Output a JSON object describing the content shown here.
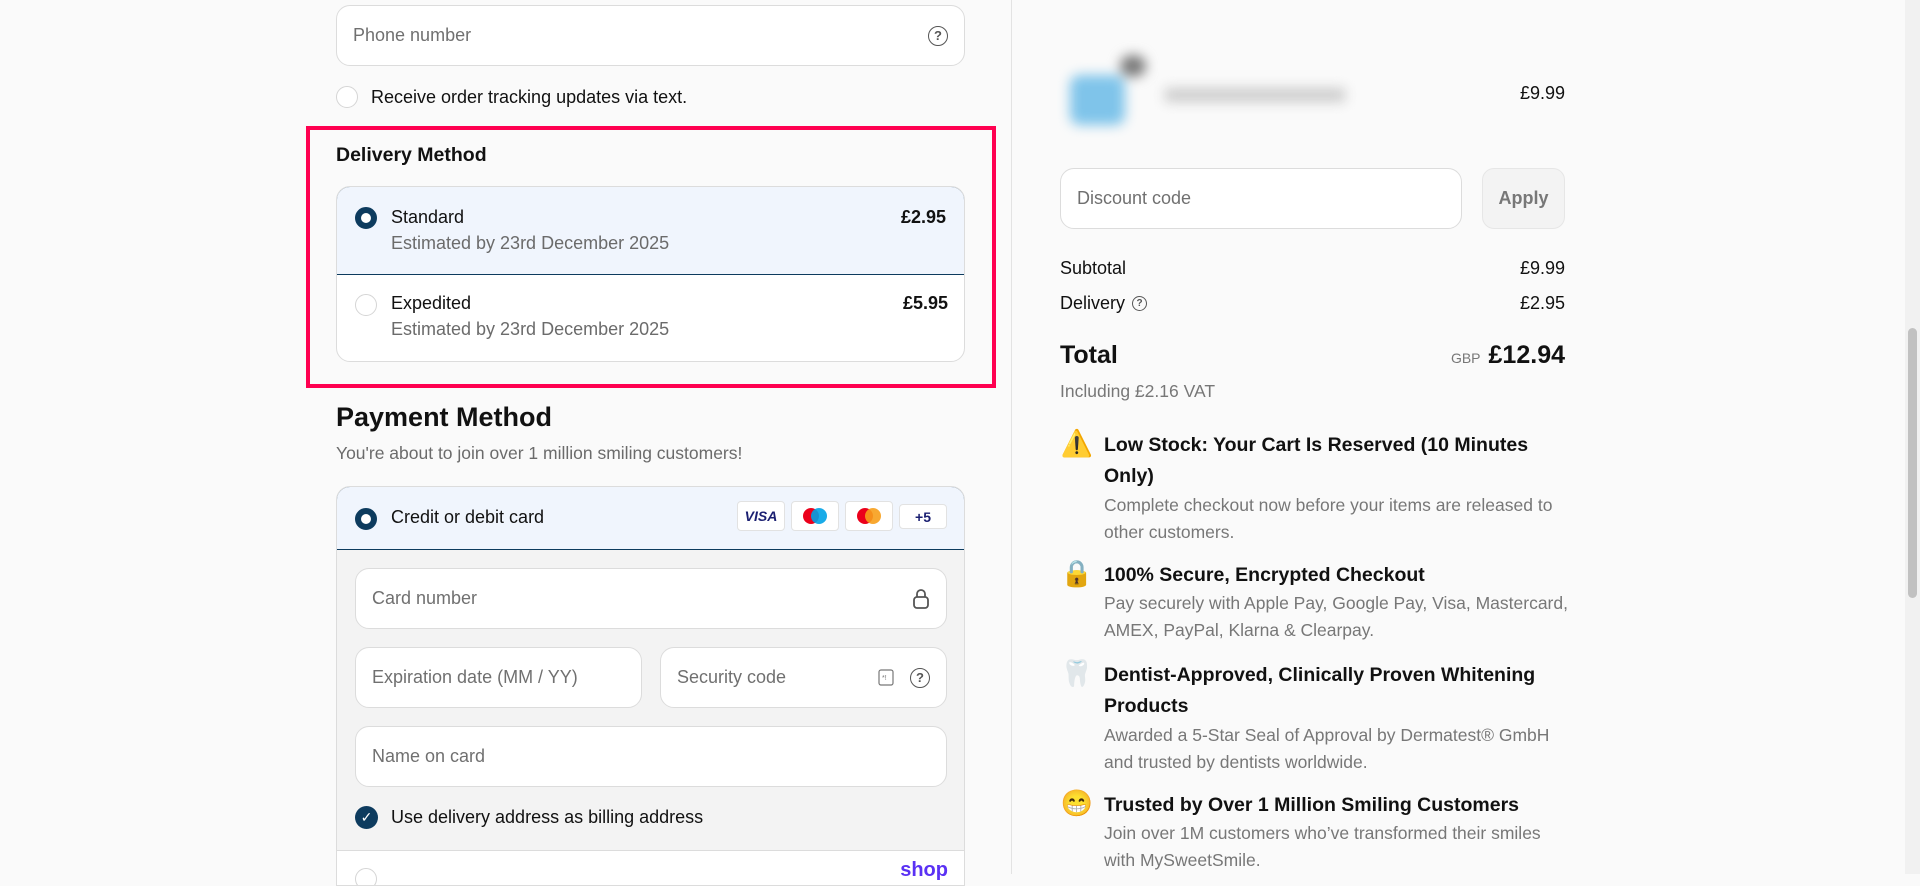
{
  "contact": {
    "phone_placeholder": "Phone number",
    "sms_label": "Receive order tracking updates via text.",
    "sms_checked": false
  },
  "delivery": {
    "heading": "Delivery Method",
    "options": [
      {
        "name": "Standard",
        "estimate": "Estimated by 23rd December 2025",
        "price": "£2.95",
        "selected": true
      },
      {
        "name": "Expedited",
        "estimate": "Estimated by 23rd December 2025",
        "price": "£5.95",
        "selected": false
      }
    ]
  },
  "payment": {
    "heading": "Payment Method",
    "subtitle": "You're about to join over 1 million smiling customers!",
    "card_option": {
      "label": "Credit or debit card",
      "selected": true,
      "brands": [
        "VISA",
        "maestro",
        "mastercard"
      ],
      "more_label": "+5"
    },
    "card_number_placeholder": "Card number",
    "expiry_placeholder": "Expiration date (MM / YY)",
    "security_placeholder": "Security code",
    "name_placeholder": "Name on card",
    "billing_same_label": "Use delivery address as billing address",
    "billing_same_checked": true,
    "next_option_logo": "shop"
  },
  "summary": {
    "item_price": "£9.99",
    "discount_placeholder": "Discount code",
    "apply_label": "Apply",
    "subtotal_label": "Subtotal",
    "subtotal_value": "£9.99",
    "delivery_label": "Delivery",
    "delivery_value": "£2.95",
    "total_label": "Total",
    "currency": "GBP",
    "total_value": "£12.94",
    "vat_note": "Including £2.16 VAT"
  },
  "features": [
    {
      "icon": "warning-icon",
      "title": "Low Stock: Your Cart Is Reserved (10 Minutes Only)",
      "desc": "Complete checkout now before your items are released to other customers."
    },
    {
      "icon": "lock-icon",
      "title": "100% Secure, Encrypted Checkout",
      "desc": "Pay securely with Apple Pay, Google Pay, Visa, Mastercard, AMEX, PayPal, Klarna & Clearpay."
    },
    {
      "icon": "tooth-icon",
      "title": "Dentist-Approved, Clinically Proven Whitening Products",
      "desc": "Awarded a 5-Star Seal of Approval by Dermatest® GmbH and trusted by dentists worldwide."
    },
    {
      "icon": "grin-icon",
      "title": "Trusted by Over 1 Million Smiling Customers",
      "desc": "Join over 1M customers who’ve transformed their smiles with MySweetSmile."
    }
  ],
  "colors": {
    "primary": "#0d3b5e",
    "selected_bg": "#f0f5fd",
    "highlight": "#ff0050",
    "shop_purple": "#5a31f4"
  }
}
